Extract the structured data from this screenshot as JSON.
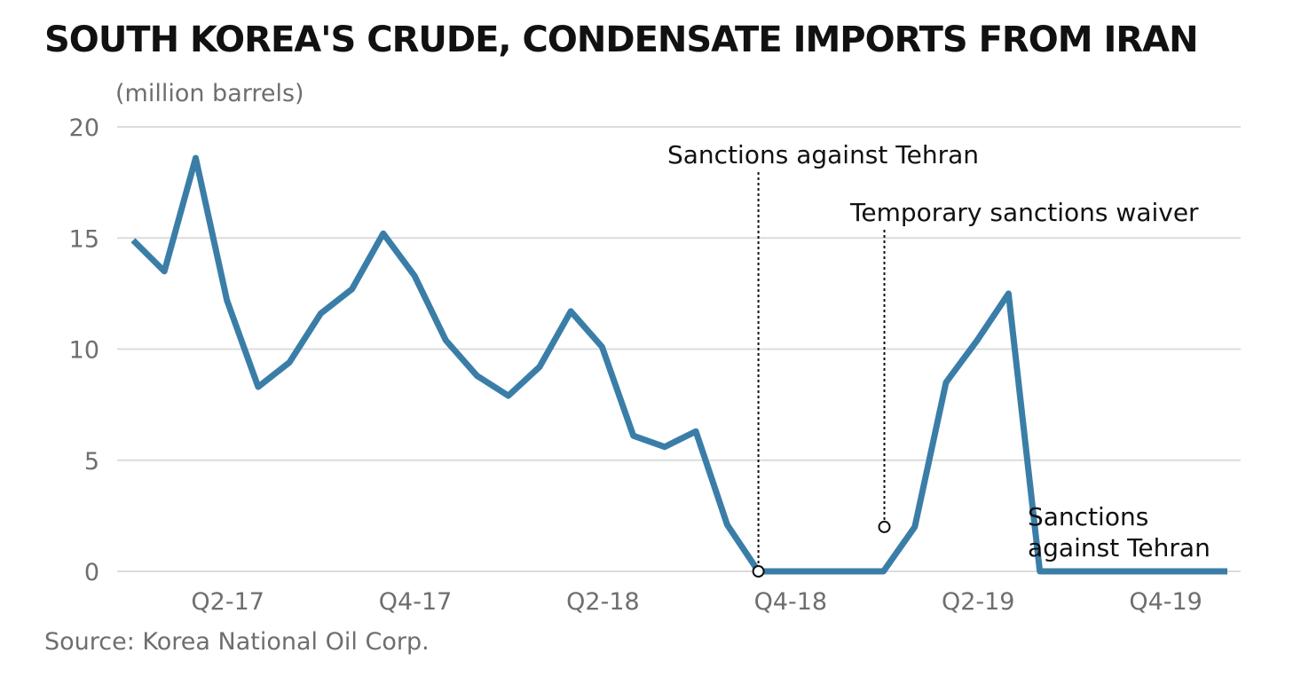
{
  "chart_data": {
    "type": "line",
    "title": "SOUTH KOREA'S CRUDE, CONDENSATE IMPORTS FROM IRAN",
    "ylabel": "(million barrels)",
    "source": "Source: Korea National Oil Corp.",
    "ylim": [
      0,
      20
    ],
    "yticks": [
      0,
      5,
      10,
      15,
      20
    ],
    "xticks": [
      {
        "label": "Q2-17",
        "index": 3
      },
      {
        "label": "Q4-17",
        "index": 9
      },
      {
        "label": "Q2-18",
        "index": 15
      },
      {
        "label": "Q4-18",
        "index": 21
      },
      {
        "label": "Q2-19",
        "index": 27
      },
      {
        "label": "Q4-19",
        "index": 33
      }
    ],
    "grid": true,
    "legend": "none",
    "series": [
      {
        "color": "#3a7ea8",
        "values": [
          14.9,
          13.5,
          18.6,
          12.2,
          8.3,
          9.4,
          11.6,
          12.7,
          15.2,
          13.3,
          10.4,
          8.8,
          7.9,
          9.2,
          11.7,
          10.1,
          6.1,
          5.6,
          6.3,
          2.1,
          0.0,
          0.0,
          0.0,
          0.0,
          0.0,
          2.0,
          8.5,
          10.4,
          12.5,
          0.0,
          0.0,
          0.0,
          0.0,
          0.0,
          0.0,
          0.0
        ]
      }
    ],
    "annotations": [
      {
        "text": "Sanctions against Tehran",
        "index": 20,
        "value": 0.0
      },
      {
        "text": "Temporary sanctions waiver",
        "index": 24,
        "value": 2.0
      },
      {
        "text": "Sanctions against Tehran",
        "index": 31,
        "value": 0.0,
        "text_line2": "against Tehran",
        "text_line1": "Sanctions"
      }
    ]
  }
}
